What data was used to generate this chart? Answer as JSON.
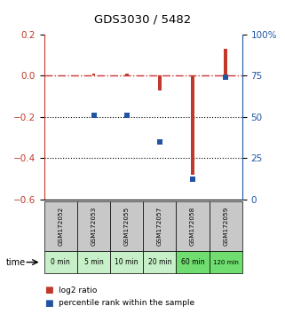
{
  "title": "GDS3030 / 5482",
  "samples": [
    "GSM172052",
    "GSM172053",
    "GSM172055",
    "GSM172057",
    "GSM172058",
    "GSM172059"
  ],
  "times": [
    "0 min",
    "5 min",
    "10 min",
    "20 min",
    "60 min",
    "120 min"
  ],
  "log2_ratio": [
    0.0,
    0.01,
    0.01,
    -0.07,
    -0.48,
    0.13
  ],
  "percentile_rank": [
    null,
    51,
    51,
    35,
    12,
    74
  ],
  "ylim_left": [
    -0.6,
    0.2
  ],
  "ylim_right": [
    0,
    100
  ],
  "yticks_left": [
    -0.6,
    -0.4,
    -0.2,
    0.0,
    0.2
  ],
  "yticks_right": [
    0,
    25,
    50,
    75,
    100
  ],
  "red_color": "#c0392b",
  "blue_color": "#2155a3",
  "dashed_line_color": "#cc3333",
  "dotted_line_color": "#000000",
  "bg_sample_gray": "#c8c8c8",
  "bg_time_green_light": "#c8f0c8",
  "bg_time_green_dark": "#70dd70",
  "legend_red_label": "log2 ratio",
  "legend_blue_label": "percentile rank within the sample",
  "time_green": [
    "#c8f0c8",
    "#c8f0c8",
    "#c8f0c8",
    "#c8f0c8",
    "#70dd70",
    "#70dd70"
  ]
}
